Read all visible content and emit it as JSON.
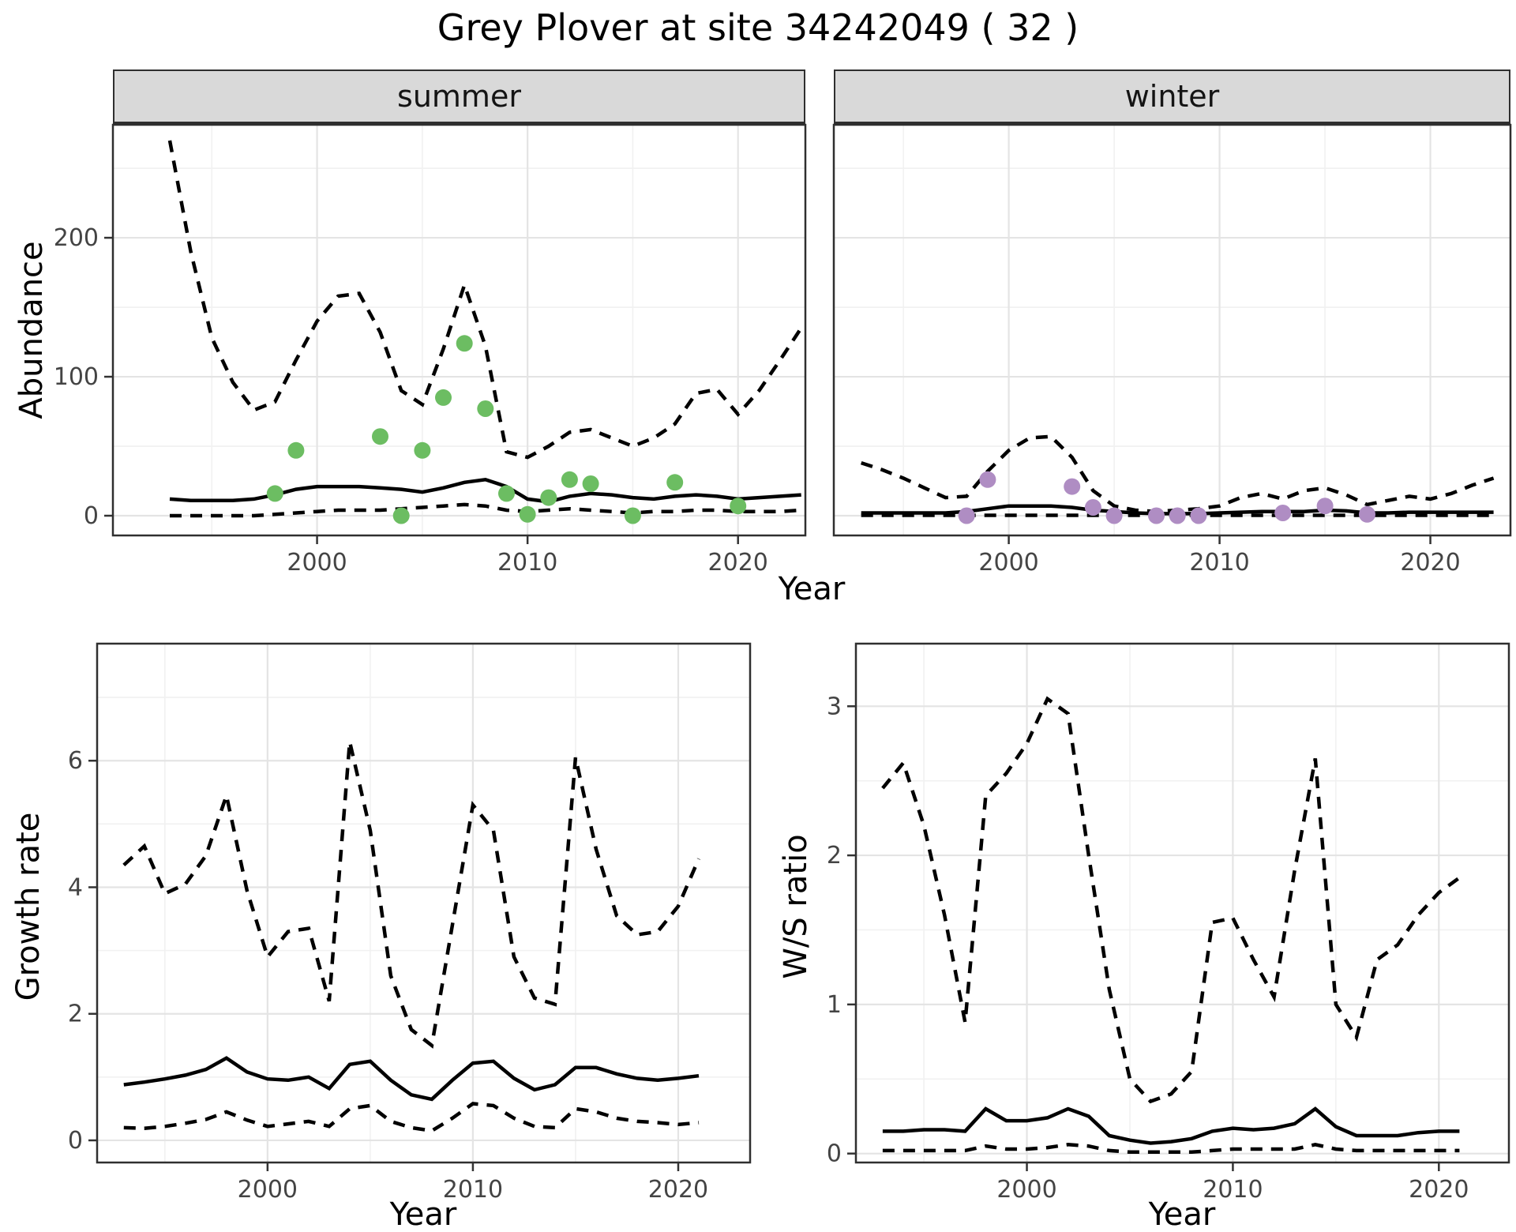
{
  "title": "Grey Plover at site 34242049 ( 32 )",
  "facets": {
    "summer": "summer",
    "winter": "winter"
  },
  "axes": {
    "abundance_label": "Abundance",
    "growth_label": "Growth rate",
    "ws_label": "W/S ratio",
    "year_label": "Year"
  },
  "colors": {
    "summer_points": "#6cbd62",
    "winter_points": "#af8dc3",
    "line": "#000000",
    "strip_background": "#d9d9d9",
    "grid_major": "#e4e4e4",
    "grid_minor": "#f1f1f1",
    "panel_border": "#2f2f2f",
    "tick_text": "#444444"
  },
  "chart_data": [
    {
      "id": "abundance-summer",
      "type": "line",
      "facet": "summer",
      "title": "Grey Plover at site 34242049 ( 32 )",
      "xlabel": "Year",
      "ylabel": "Abundance",
      "x": [
        1993,
        1994,
        1995,
        1996,
        1997,
        1998,
        1999,
        2000,
        2001,
        2002,
        2003,
        2004,
        2005,
        2006,
        2007,
        2008,
        2009,
        2010,
        2011,
        2012,
        2013,
        2014,
        2015,
        2016,
        2017,
        2018,
        2019,
        2020,
        2021,
        2022,
        2023
      ],
      "series": [
        {
          "name": "upper_95ci",
          "linetype": "dashed",
          "values": [
            270,
            190,
            128,
            96,
            76,
            82,
            112,
            140,
            158,
            160,
            132,
            90,
            80,
            120,
            166,
            122,
            46,
            42,
            50,
            60,
            62,
            56,
            50,
            56,
            66,
            88,
            91,
            73,
            90,
            112,
            135
          ]
        },
        {
          "name": "median_fit",
          "linetype": "solid",
          "values": [
            12,
            11,
            11,
            11,
            12,
            15,
            19,
            21,
            21,
            21,
            20,
            19,
            17,
            20,
            24,
            26,
            21,
            12,
            10,
            14,
            16,
            15,
            13,
            12,
            14,
            15,
            14,
            12,
            13,
            14,
            15
          ]
        },
        {
          "name": "lower_95ci",
          "linetype": "dashed",
          "values": [
            0,
            0,
            0,
            0,
            0,
            1,
            2,
            3,
            4,
            4,
            4,
            5,
            6,
            7,
            8,
            7,
            4,
            3,
            4,
            5,
            4,
            3,
            2,
            3,
            3,
            4,
            4,
            3,
            3,
            3,
            4
          ]
        }
      ],
      "points": {
        "name": "summer_observations",
        "color": "#6cbd62",
        "xy": [
          [
            1998,
            16
          ],
          [
            1999,
            47
          ],
          [
            2003,
            57
          ],
          [
            2004,
            0
          ],
          [
            2005,
            47
          ],
          [
            2006,
            85
          ],
          [
            2007,
            124
          ],
          [
            2008,
            77
          ],
          [
            2009,
            16
          ],
          [
            2010,
            1
          ],
          [
            2011,
            13
          ],
          [
            2012,
            26
          ],
          [
            2013,
            23
          ],
          [
            2015,
            0
          ],
          [
            2017,
            24
          ],
          [
            2020,
            7
          ]
        ]
      },
      "xlim": [
        1990.3,
        2023.2
      ],
      "ylim": [
        -14.2,
        281.3
      ],
      "x_ticks": [
        2000,
        2010,
        2020
      ],
      "x_minor_breaks": [
        1995,
        2005,
        2015
      ],
      "y_ticks": [
        0,
        100,
        200
      ],
      "y_minor_breaks": [
        50,
        150,
        250
      ],
      "show_y_axis": true,
      "grid": true
    },
    {
      "id": "abundance-winter",
      "type": "line",
      "facet": "winter",
      "title": "Grey Plover at site 34242049 ( 32 )",
      "xlabel": "Year",
      "ylabel": "Abundance",
      "x": [
        1993,
        1994,
        1995,
        1996,
        1997,
        1998,
        1999,
        2000,
        2001,
        2002,
        2003,
        2004,
        2005,
        2006,
        2007,
        2008,
        2009,
        2010,
        2011,
        2012,
        2013,
        2014,
        2015,
        2016,
        2017,
        2018,
        2019,
        2020,
        2021,
        2022,
        2023
      ],
      "series": [
        {
          "name": "upper_95ci",
          "linetype": "dashed",
          "values": [
            38,
            33,
            27,
            20,
            13,
            14,
            32,
            47,
            56,
            57,
            42,
            18,
            7,
            4,
            3,
            4,
            5,
            7,
            13,
            16,
            12,
            18,
            20,
            15,
            8,
            11,
            14,
            12,
            16,
            22,
            27
          ]
        },
        {
          "name": "median_fit",
          "linetype": "solid",
          "values": [
            2,
            2,
            2,
            2,
            2,
            3,
            5,
            7,
            7,
            7,
            6,
            4,
            3,
            2,
            1.5,
            1.5,
            1.5,
            2,
            2.5,
            3,
            3,
            3,
            4,
            3.5,
            2,
            2,
            2.5,
            2.5,
            2.5,
            2.5,
            2.5
          ]
        },
        {
          "name": "lower_95ci",
          "linetype": "dashed",
          "values": [
            0.3,
            0.3,
            0.3,
            0.3,
            0.3,
            0.3,
            0.3,
            0.3,
            0.3,
            0.3,
            0.3,
            0.3,
            0.3,
            0.3,
            0.3,
            0.3,
            0.3,
            0.3,
            0.3,
            0.3,
            0.3,
            0.3,
            0.3,
            0.3,
            0.3,
            0.3,
            0.3,
            0.3,
            0.3,
            0.3,
            0.3
          ]
        }
      ],
      "points": {
        "name": "winter_observations",
        "color": "#af8dc3",
        "xy": [
          [
            1998,
            0
          ],
          [
            1999,
            26
          ],
          [
            2003,
            21
          ],
          [
            2004,
            6
          ],
          [
            2005,
            0
          ],
          [
            2007,
            0
          ],
          [
            2008,
            0
          ],
          [
            2009,
            0
          ],
          [
            2013,
            2
          ],
          [
            2015,
            7
          ],
          [
            2017,
            1
          ]
        ]
      },
      "xlim": [
        1991.7,
        2023.8
      ],
      "ylim": [
        -14.2,
        281.3
      ],
      "x_ticks": [
        2000,
        2010,
        2020
      ],
      "x_minor_breaks": [
        1995,
        2005,
        2015
      ],
      "y_ticks": [
        0,
        100,
        200
      ],
      "y_minor_breaks": [
        50,
        150,
        250
      ],
      "show_y_axis": false,
      "grid": true
    },
    {
      "id": "growth-rate",
      "type": "line",
      "facet": null,
      "xlabel": "Year",
      "ylabel": "Growth rate",
      "x": [
        1993,
        1994,
        1995,
        1996,
        1997,
        1998,
        1999,
        2000,
        2001,
        2002,
        2003,
        2004,
        2005,
        2006,
        2007,
        2008,
        2009,
        2010,
        2011,
        2012,
        2013,
        2014,
        2015,
        2016,
        2017,
        2018,
        2019,
        2020,
        2021
      ],
      "series": [
        {
          "name": "upper_95ci",
          "linetype": "dashed",
          "values": [
            4.35,
            4.65,
            3.9,
            4.05,
            4.5,
            5.45,
            3.95,
            2.9,
            3.3,
            3.35,
            2.2,
            6.3,
            4.9,
            2.6,
            1.75,
            1.5,
            3.4,
            5.3,
            4.9,
            2.9,
            2.25,
            2.15,
            6.05,
            4.6,
            3.55,
            3.25,
            3.3,
            3.7,
            4.45
          ]
        },
        {
          "name": "median_fit",
          "linetype": "solid",
          "values": [
            0.88,
            0.92,
            0.97,
            1.03,
            1.12,
            1.3,
            1.08,
            0.97,
            0.95,
            1.0,
            0.82,
            1.2,
            1.25,
            0.95,
            0.72,
            0.65,
            0.95,
            1.22,
            1.25,
            0.98,
            0.8,
            0.88,
            1.15,
            1.15,
            1.05,
            0.98,
            0.95,
            0.98,
            1.02
          ]
        },
        {
          "name": "lower_95ci",
          "linetype": "dashed",
          "values": [
            0.2,
            0.19,
            0.22,
            0.27,
            0.33,
            0.45,
            0.32,
            0.22,
            0.26,
            0.3,
            0.22,
            0.5,
            0.55,
            0.3,
            0.2,
            0.15,
            0.35,
            0.58,
            0.55,
            0.35,
            0.22,
            0.2,
            0.5,
            0.45,
            0.35,
            0.3,
            0.28,
            0.25,
            0.28
          ]
        }
      ],
      "xlim": [
        1991.7,
        2023.5
      ],
      "ylim": [
        -0.35,
        7.85
      ],
      "x_ticks": [
        2000,
        2010,
        2020
      ],
      "x_minor_breaks": [
        1995,
        2005,
        2015
      ],
      "y_ticks": [
        0,
        2,
        4,
        6
      ],
      "y_minor_breaks": [
        1,
        3,
        5,
        7
      ],
      "show_y_axis": true,
      "grid": true
    },
    {
      "id": "ws-ratio",
      "type": "line",
      "facet": null,
      "xlabel": "Year",
      "ylabel": "W/S ratio",
      "x": [
        1993,
        1994,
        1995,
        1996,
        1997,
        1998,
        1999,
        2000,
        2001,
        2002,
        2003,
        2004,
        2005,
        2006,
        2007,
        2008,
        2009,
        2010,
        2011,
        2012,
        2013,
        2014,
        2015,
        2016,
        2017,
        2018,
        2019,
        2020,
        2021
      ],
      "series": [
        {
          "name": "upper_95ci",
          "linetype": "dashed",
          "values": [
            2.45,
            2.62,
            2.2,
            1.6,
            0.88,
            2.4,
            2.55,
            2.75,
            3.05,
            2.95,
            2.0,
            1.1,
            0.5,
            0.35,
            0.4,
            0.55,
            1.55,
            1.58,
            1.3,
            1.05,
            1.9,
            2.65,
            1.0,
            0.78,
            1.3,
            1.4,
            1.6,
            1.75,
            1.85
          ]
        },
        {
          "name": "median_fit",
          "linetype": "solid",
          "values": [
            0.15,
            0.15,
            0.16,
            0.16,
            0.15,
            0.3,
            0.22,
            0.22,
            0.24,
            0.3,
            0.25,
            0.12,
            0.09,
            0.07,
            0.08,
            0.1,
            0.15,
            0.17,
            0.16,
            0.17,
            0.2,
            0.3,
            0.18,
            0.12,
            0.12,
            0.12,
            0.14,
            0.15,
            0.15
          ]
        },
        {
          "name": "lower_95ci",
          "linetype": "dashed",
          "values": [
            0.02,
            0.02,
            0.02,
            0.02,
            0.02,
            0.05,
            0.03,
            0.03,
            0.04,
            0.06,
            0.05,
            0.02,
            0.01,
            0.01,
            0.01,
            0.01,
            0.02,
            0.03,
            0.03,
            0.03,
            0.03,
            0.06,
            0.03,
            0.02,
            0.02,
            0.02,
            0.02,
            0.02,
            0.02
          ]
        }
      ],
      "xlim": [
        1991.7,
        2023.4
      ],
      "ylim": [
        -0.06,
        3.42
      ],
      "x_ticks": [
        2000,
        2010,
        2020
      ],
      "x_minor_breaks": [
        1995,
        2005,
        2015
      ],
      "y_ticks": [
        0,
        1,
        2,
        3
      ],
      "y_minor_breaks": [
        0.5,
        1.5,
        2.5
      ],
      "show_y_axis": true,
      "grid": true
    }
  ]
}
